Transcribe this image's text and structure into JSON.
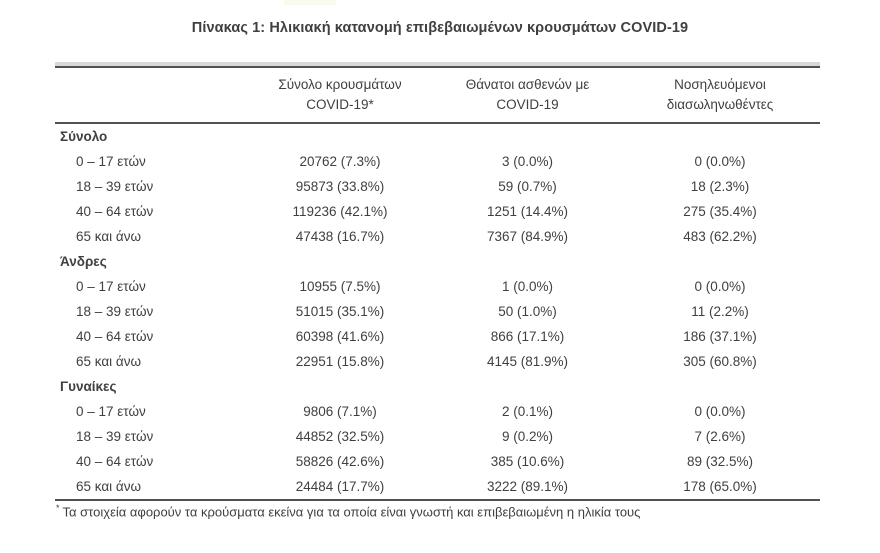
{
  "title": "Πίνακας 1: Ηλικιακή κατανομή επιβεβαιωμένων κρουσμάτων COVID-19",
  "table": {
    "columns": [
      {
        "line1": "Σύνολο κρουσμάτων",
        "line2": "COVID-19*"
      },
      {
        "line1": "Θάνατοι ασθενών με",
        "line2": "COVID-19"
      },
      {
        "line1": "Νοσηλευόμενοι",
        "line2": "διασωληνωθέντες"
      }
    ],
    "sections": [
      {
        "name": "Σύνολο",
        "rows": [
          {
            "label": "0 – 17 ετών",
            "cases": "20762 (7.3%)",
            "deaths": "3 (0.0%)",
            "intubated": "0 (0.0%)"
          },
          {
            "label": "18 – 39 ετών",
            "cases": "95873 (33.8%)",
            "deaths": "59 (0.7%)",
            "intubated": "18 (2.3%)"
          },
          {
            "label": "40 – 64 ετών",
            "cases": "119236 (42.1%)",
            "deaths": "1251 (14.4%)",
            "intubated": "275 (35.4%)"
          },
          {
            "label": "65 και άνω",
            "cases": "47438 (16.7%)",
            "deaths": "7367 (84.9%)",
            "intubated": "483 (62.2%)"
          }
        ]
      },
      {
        "name": "Άνδρες",
        "rows": [
          {
            "label": "0 – 17 ετών",
            "cases": "10955 (7.5%)",
            "deaths": "1 (0.0%)",
            "intubated": "0 (0.0%)"
          },
          {
            "label": "18 – 39 ετών",
            "cases": "51015 (35.1%)",
            "deaths": "50 (1.0%)",
            "intubated": "11 (2.2%)"
          },
          {
            "label": "40 – 64 ετών",
            "cases": "60398 (41.6%)",
            "deaths": "866 (17.1%)",
            "intubated": "186 (37.1%)"
          },
          {
            "label": "65 και άνω",
            "cases": "22951 (15.8%)",
            "deaths": "4145 (81.9%)",
            "intubated": "305 (60.8%)"
          }
        ]
      },
      {
        "name": "Γυναίκες",
        "rows": [
          {
            "label": "0 – 17 ετών",
            "cases": "9806 (7.1%)",
            "deaths": "2 (0.1%)",
            "intubated": "0 (0.0%)"
          },
          {
            "label": "18 – 39 ετών",
            "cases": "44852 (32.5%)",
            "deaths": "9 (0.2%)",
            "intubated": "7 (2.6%)"
          },
          {
            "label": "40 – 64 ετών",
            "cases": "58826 (42.6%)",
            "deaths": "385 (10.6%)",
            "intubated": "89 (32.5%)"
          },
          {
            "label": "65 και άνω",
            "cases": "24484 (17.7%)",
            "deaths": "3222 (89.1%)",
            "intubated": "178 (65.0%)"
          }
        ]
      }
    ]
  },
  "footnote": {
    "marker": "*",
    "text": "Τα στοιχεία αφορούν τα κρούσματα εκείνα για τα οποία είναι γνωστή και επιβεβαιωμένη η ηλικία τους"
  },
  "colors": {
    "text": "#3f4040",
    "rule": "#515151",
    "background": "#ffffff"
  }
}
